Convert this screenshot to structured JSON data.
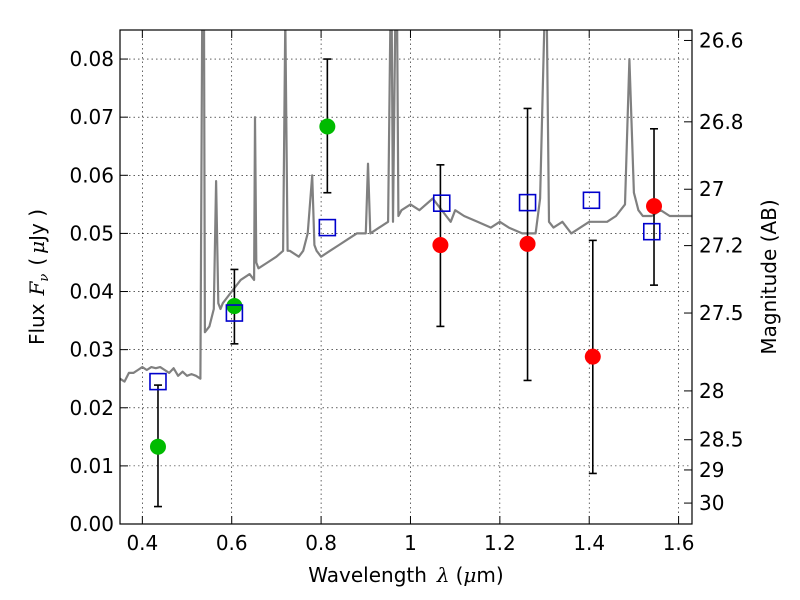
{
  "chart_data": {
    "type": "scatter",
    "xlabel_text": "Wavelength",
    "xlabel_symbol": "λ",
    "xlabel_unit_open": "(",
    "xlabel_unit_mu": "μ",
    "xlabel_unit_rest": "m)",
    "ylabel_text": "Flux",
    "ylabel_symbol": "F",
    "ylabel_subscript": "ν",
    "ylabel_unit_open": "(",
    "ylabel_unit_mu": "μ",
    "ylabel_unit_rest": "Jy )",
    "y2label": "Magnitude (AB)",
    "xlim": [
      0.35,
      1.63
    ],
    "ylim": [
      0.0,
      0.085
    ],
    "grid": true,
    "xticks": [
      0.4,
      0.6,
      0.8,
      1.0,
      1.2,
      1.4,
      1.6
    ],
    "xtick_labels": [
      "0.4",
      "0.6",
      "0.8",
      "1",
      "1.2",
      "1.4",
      "1.6"
    ],
    "yticks": [
      0.0,
      0.01,
      0.02,
      0.03,
      0.04,
      0.05,
      0.06,
      0.07,
      0.08
    ],
    "ytick_labels": [
      "0.00",
      "0.01",
      "0.02",
      "0.03",
      "0.04",
      "0.05",
      "0.06",
      "0.07",
      "0.08"
    ],
    "y2ticks": [
      {
        "label": "26.6",
        "flux": 0.0832
      },
      {
        "label": "26.8",
        "flux": 0.0692
      },
      {
        "label": "27",
        "flux": 0.0576
      },
      {
        "label": "27.2",
        "flux": 0.0479
      },
      {
        "label": "27.5",
        "flux": 0.0363
      },
      {
        "label": "28",
        "flux": 0.0229
      },
      {
        "label": "28.5",
        "flux": 0.0145
      },
      {
        "label": "29",
        "flux": 0.0093
      },
      {
        "label": "30",
        "flux": 0.0036
      }
    ],
    "series": [
      {
        "name": "model spectrum",
        "kind": "line",
        "color": "#808080",
        "x": [
          0.35,
          0.36,
          0.37,
          0.38,
          0.39,
          0.4,
          0.41,
          0.42,
          0.43,
          0.44,
          0.45,
          0.46,
          0.47,
          0.48,
          0.49,
          0.5,
          0.51,
          0.52,
          0.53,
          0.534,
          0.538,
          0.54,
          0.55,
          0.56,
          0.565,
          0.57,
          0.575,
          0.58,
          0.6,
          0.62,
          0.64,
          0.65,
          0.652,
          0.655,
          0.66,
          0.68,
          0.7,
          0.715,
          0.72,
          0.725,
          0.73,
          0.75,
          0.76,
          0.77,
          0.78,
          0.785,
          0.79,
          0.8,
          0.82,
          0.84,
          0.86,
          0.88,
          0.9,
          0.905,
          0.91,
          0.93,
          0.95,
          0.955,
          0.958,
          0.961,
          0.966,
          0.97,
          0.973,
          0.98,
          1.0,
          1.02,
          1.05,
          1.06,
          1.07,
          1.08,
          1.09,
          1.1,
          1.12,
          1.15,
          1.18,
          1.2,
          1.22,
          1.25,
          1.28,
          1.29,
          1.3,
          1.305,
          1.31,
          1.32,
          1.34,
          1.36,
          1.38,
          1.4,
          1.42,
          1.44,
          1.46,
          1.48,
          1.49,
          1.5,
          1.51,
          1.52,
          1.54,
          1.56,
          1.58,
          1.6,
          1.62,
          1.63
        ],
        "y": [
          0.025,
          0.0245,
          0.026,
          0.026,
          0.0265,
          0.027,
          0.0265,
          0.027,
          0.0268,
          0.027,
          0.0265,
          0.026,
          0.0268,
          0.0255,
          0.0262,
          0.0255,
          0.0258,
          0.0255,
          0.025,
          0.087,
          0.087,
          0.033,
          0.034,
          0.037,
          0.059,
          0.038,
          0.037,
          0.038,
          0.04,
          0.042,
          0.043,
          0.042,
          0.07,
          0.045,
          0.044,
          0.045,
          0.046,
          0.047,
          0.087,
          0.047,
          0.047,
          0.046,
          0.047,
          0.05,
          0.06,
          0.048,
          0.047,
          0.046,
          0.047,
          0.048,
          0.049,
          0.05,
          0.05,
          0.062,
          0.05,
          0.051,
          0.052,
          0.087,
          0.087,
          0.052,
          0.087,
          0.087,
          0.053,
          0.054,
          0.055,
          0.054,
          0.056,
          0.055,
          0.054,
          0.053,
          0.052,
          0.054,
          0.053,
          0.052,
          0.051,
          0.052,
          0.051,
          0.05,
          0.05,
          0.056,
          0.087,
          0.087,
          0.052,
          0.051,
          0.052,
          0.05,
          0.051,
          0.052,
          0.052,
          0.052,
          0.053,
          0.055,
          0.08,
          0.057,
          0.054,
          0.053,
          0.053,
          0.054,
          0.053,
          0.053,
          0.053,
          0.053
        ]
      },
      {
        "name": "measured (green)",
        "kind": "points",
        "color": "#00bb00",
        "points": [
          {
            "x": 0.435,
            "y": 0.0133,
            "err_low": 0.003,
            "err_high": 0.0239
          },
          {
            "x": 0.606,
            "y": 0.0375,
            "err_low": 0.031,
            "err_high": 0.0438
          },
          {
            "x": 0.814,
            "y": 0.0684,
            "err_low": 0.057,
            "err_high": 0.08
          }
        ]
      },
      {
        "name": "measured (red)",
        "kind": "points",
        "color": "#ff0000",
        "points": [
          {
            "x": 1.067,
            "y": 0.048,
            "err_low": 0.034,
            "err_high": 0.0618
          },
          {
            "x": 1.262,
            "y": 0.0482,
            "err_low": 0.0247,
            "err_high": 0.0715
          },
          {
            "x": 1.408,
            "y": 0.0288,
            "err_low": 0.0087,
            "err_high": 0.0488
          },
          {
            "x": 1.545,
            "y": 0.0547,
            "err_low": 0.0411,
            "err_high": 0.068
          }
        ]
      },
      {
        "name": "model photometry",
        "kind": "open-squares",
        "color": "#0000cc",
        "points": [
          {
            "x": 0.435,
            "y": 0.0245
          },
          {
            "x": 0.606,
            "y": 0.0363
          },
          {
            "x": 0.814,
            "y": 0.051
          },
          {
            "x": 1.07,
            "y": 0.0552
          },
          {
            "x": 1.262,
            "y": 0.0553
          },
          {
            "x": 1.405,
            "y": 0.0557
          },
          {
            "x": 1.54,
            "y": 0.0503
          }
        ]
      }
    ]
  }
}
